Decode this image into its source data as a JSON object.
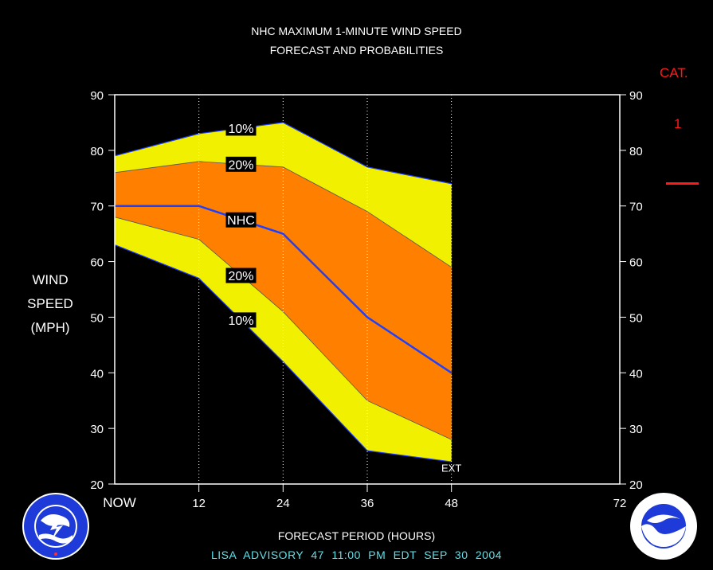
{
  "chart_data": {
    "type": "area",
    "title": "NHC MAXIMUM 1-MINUTE WIND SPEED",
    "subtitle": "FORECAST AND PROBABILITIES",
    "ylabel": [
      "WIND",
      "SPEED",
      "(MPH)"
    ],
    "xlabel": "FORECAST PERIOD (HOURS)",
    "xlim": [
      0,
      72
    ],
    "ylim": [
      20,
      90
    ],
    "x_ticks": [
      0,
      12,
      24,
      36,
      48,
      72
    ],
    "x_tick_labels": [
      "NOW",
      "12",
      "24",
      "36",
      "48",
      "72"
    ],
    "y_ticks": [
      20,
      30,
      40,
      50,
      60,
      70,
      80,
      90
    ],
    "y_tick_labels": [
      "20",
      "30",
      "40",
      "50",
      "60",
      "70",
      "80",
      "90"
    ],
    "grid_x": [
      12,
      24,
      36,
      48
    ],
    "x": [
      0,
      12,
      24,
      36,
      48
    ],
    "series": [
      {
        "name": "10%",
        "values": [
          79,
          83,
          85,
          77,
          74
        ]
      },
      {
        "name": "20%",
        "values": [
          76,
          78,
          77,
          69,
          59
        ]
      },
      {
        "name": "NHC",
        "values": [
          70,
          70,
          65,
          50,
          40
        ]
      },
      {
        "name": "20%",
        "values": [
          68,
          64,
          51,
          35,
          28
        ]
      },
      {
        "name": "10%",
        "values": [
          63,
          57,
          42,
          26,
          24
        ]
      }
    ],
    "band_labels": [
      {
        "text": "10%",
        "x": 18,
        "y": 84
      },
      {
        "text": "20%",
        "x": 18,
        "y": 77.5
      },
      {
        "text": "NHC",
        "x": 18,
        "y": 67.5
      },
      {
        "text": "20%",
        "x": 18,
        "y": 57.5
      },
      {
        "text": "10%",
        "x": 18,
        "y": 49.5
      }
    ],
    "ext_label": {
      "text": "EXT",
      "x": 48,
      "y": 22.5
    },
    "category": {
      "label": "CAT.",
      "value": "1",
      "threshold_mph": 74
    },
    "advisory": "LISA   ADVISORY  47  11:00  PM  EDT  SEP  30  2004",
    "colors": {
      "background": "#000000",
      "outer_band": "#f0f000",
      "inner_band": "#ff8000",
      "forecast_line": "#2040ff",
      "category": "#ff1a1a",
      "advisory_text": "#5fe0e8",
      "axis": "#ffffff"
    }
  }
}
